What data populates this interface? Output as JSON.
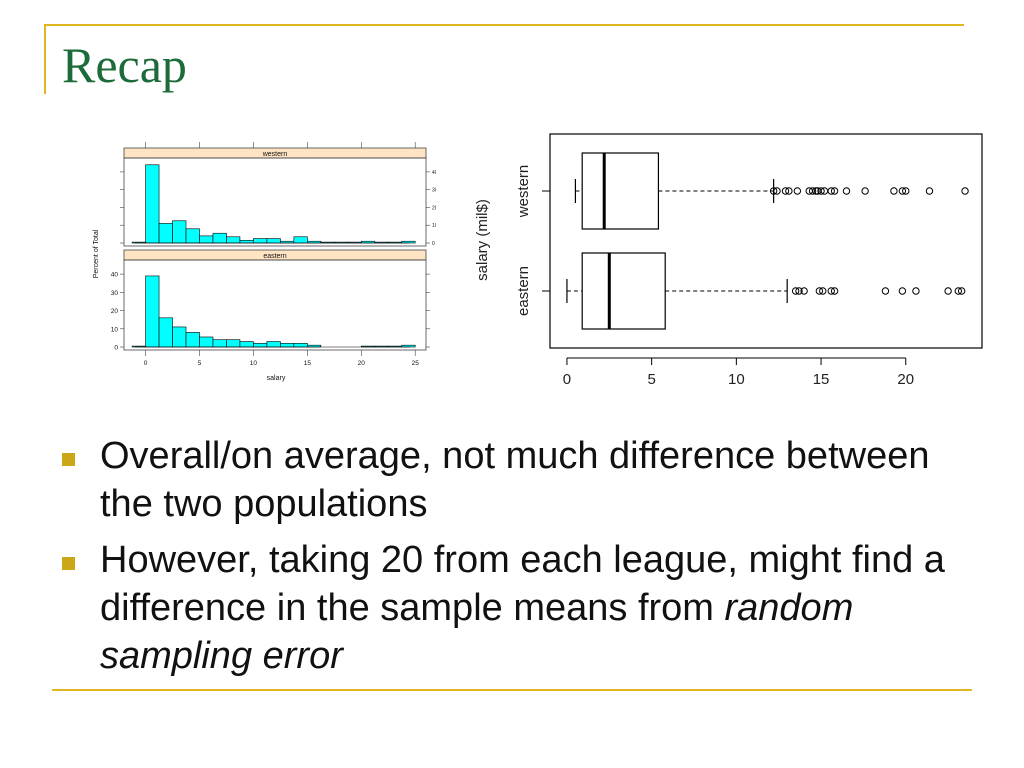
{
  "slide": {
    "title": "Recap",
    "bullets": [
      {
        "text": "Overall/on average, not much difference between the two populations"
      },
      {
        "text": "However, taking 20 from each league, might find a difference in the sample means from ",
        "emphasis": "random sampling error"
      }
    ]
  },
  "colors": {
    "accent": "#e3b520",
    "title": "#1d6a3a",
    "bar_fill": "#00ffff",
    "strip": "#ffe4c4"
  },
  "chart_data": [
    {
      "type": "bar",
      "title": "",
      "xlabel": "salary",
      "ylabel": "Percent of Total",
      "xlim": [
        -2,
        26
      ],
      "xticks": [
        "0",
        "5",
        "10",
        "15",
        "20",
        "25"
      ],
      "bin_width": 1.25,
      "panels": [
        {
          "name": "western",
          "ylim": [
            0,
            45
          ],
          "yticks": [
            "0",
            "10",
            "20",
            "30",
            "40"
          ],
          "bin_starts": [
            -1.25,
            0,
            1.25,
            2.5,
            3.75,
            5,
            6.25,
            7.5,
            8.75,
            10,
            11.25,
            12.5,
            13.75,
            15,
            16.25,
            17.5,
            18.75,
            20,
            21.25,
            22.5,
            23.75
          ],
          "values": [
            0.5,
            44,
            11,
            12.5,
            8,
            4,
            5.5,
            3.5,
            1.5,
            2.5,
            2.5,
            1,
            3.5,
            1,
            0.5,
            0.5,
            0.5,
            1,
            0.5,
            0.5,
            1
          ]
        },
        {
          "name": "eastern",
          "ylim": [
            0,
            45
          ],
          "yticks": [
            "0",
            "10",
            "20",
            "30",
            "40"
          ],
          "bin_starts": [
            -1.25,
            0,
            1.25,
            2.5,
            3.75,
            5,
            6.25,
            7.5,
            8.75,
            10,
            11.25,
            12.5,
            13.75,
            15,
            16.25,
            17.5,
            18.75,
            20,
            21.25,
            22.5,
            23.75
          ],
          "values": [
            0.5,
            39,
            16,
            11,
            8,
            5.5,
            4,
            4,
            3,
            2,
            3,
            2,
            2,
            1,
            0,
            0,
            0,
            0.5,
            0.5,
            0.5,
            1
          ]
        }
      ]
    },
    {
      "type": "boxplot",
      "title": "",
      "xlabel": "",
      "ylabel": "salary (mil$)",
      "xlim": [
        -1,
        24.5
      ],
      "xticks": [
        "0",
        "5",
        "10",
        "15",
        "20"
      ],
      "series": [
        {
          "name": "western",
          "whisker_low": 0.5,
          "q1": 0.9,
          "median": 2.2,
          "q3": 5.4,
          "whisker_high": 12.2,
          "outliers": [
            12.2,
            12.4,
            12.9,
            13.1,
            13.6,
            14.3,
            14.5,
            14.7,
            14.8,
            15.0,
            15.2,
            15.6,
            15.8,
            16.5,
            17.6,
            19.3,
            19.8,
            20.0,
            21.4,
            23.5
          ]
        },
        {
          "name": "eastern",
          "whisker_low": 0.0,
          "q1": 0.9,
          "median": 2.5,
          "q3": 5.8,
          "whisker_high": 13.0,
          "outliers": [
            13.5,
            13.7,
            14.0,
            14.9,
            15.1,
            15.6,
            15.8,
            18.8,
            19.8,
            20.6,
            22.5,
            23.1,
            23.3
          ]
        }
      ]
    }
  ]
}
